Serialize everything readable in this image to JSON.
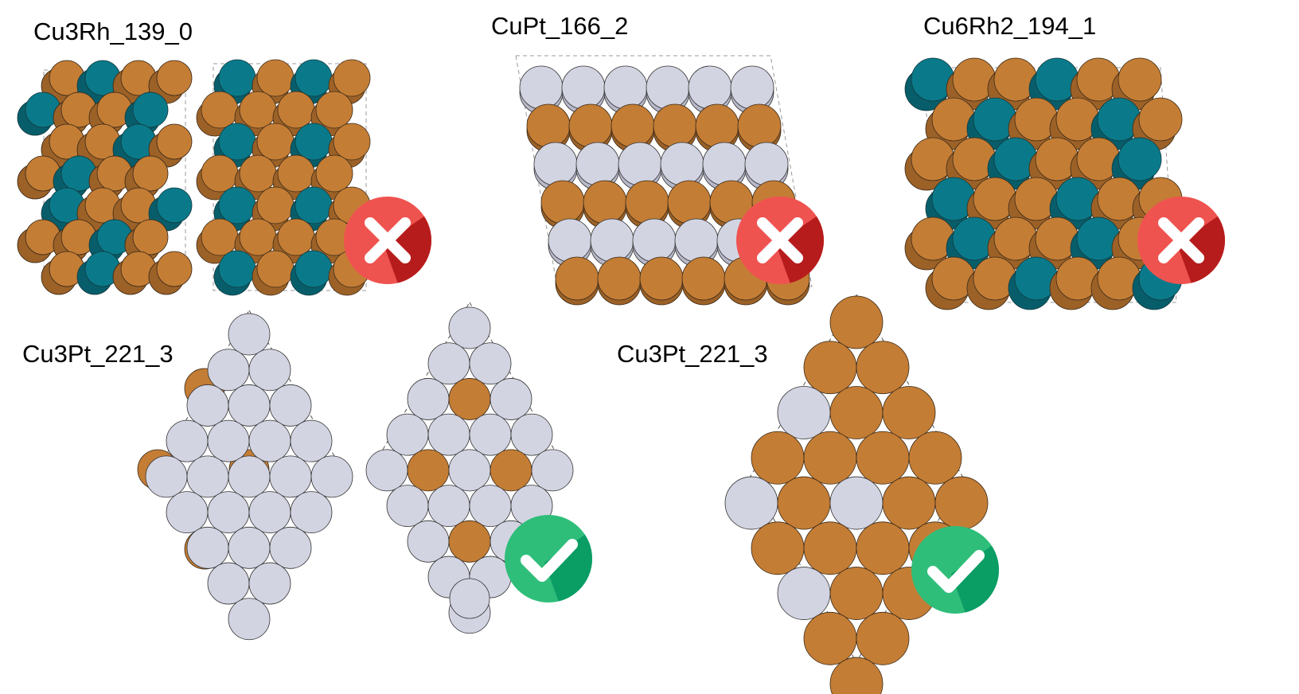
{
  "panels": [
    {
      "label": "Cu3Rh_139_0",
      "verdict": "incorrect",
      "verdict_icon": "cross-icon"
    },
    {
      "label": "CuPt_166_2",
      "verdict": "incorrect",
      "verdict_icon": "cross-icon"
    },
    {
      "label": "Cu6Rh2_194_1",
      "verdict": "incorrect",
      "verdict_icon": "cross-icon"
    },
    {
      "label": "Cu3Pt_221_3",
      "verdict": "correct",
      "verdict_icon": "check-icon"
    },
    {
      "label": "Cu3Pt_221_3",
      "verdict": "correct",
      "verdict_icon": "check-icon"
    }
  ],
  "colors": {
    "cu": "#c47d35",
    "rh": "#0a7a8a",
    "pt": "#d3d4e2",
    "incorrect_badge": "#ef5350",
    "incorrect_badge_shadow": "#b71c1c",
    "correct_badge": "#2fbe7a",
    "correct_badge_shadow": "#0a9d64"
  }
}
